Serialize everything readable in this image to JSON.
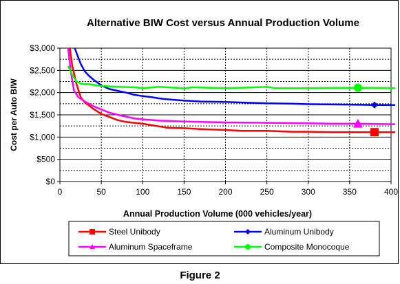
{
  "figure_caption": "Figure 2",
  "chart_data": {
    "type": "line",
    "title": "Alternative BIW Cost versus Annual Production Volume",
    "xlabel": "Annual Production Volume (000 vehicles/year)",
    "ylabel": "Cost per Auto BIW",
    "xlim": [
      0,
      400
    ],
    "ylim": [
      0,
      3000
    ],
    "x_ticks": [
      0,
      50,
      100,
      150,
      200,
      250,
      300,
      350,
      400
    ],
    "y_ticks": [
      0,
      500,
      1000,
      1500,
      2000,
      2500,
      3000
    ],
    "y_tick_labels": [
      "$0",
      "$500",
      "$1,000",
      "$1,500",
      "$2,000",
      "$2,500",
      "$3,000"
    ],
    "grid": true,
    "legend_position": "bottom",
    "series": [
      {
        "name": "Steel Unibody",
        "color": "#ff0000",
        "marker": "square",
        "marker_x": 380,
        "points": [
          [
            12,
            3000
          ],
          [
            15,
            2600
          ],
          [
            20,
            2200
          ],
          [
            25,
            1900
          ],
          [
            30,
            1780
          ],
          [
            40,
            1640
          ],
          [
            50,
            1520
          ],
          [
            60,
            1450
          ],
          [
            70,
            1380
          ],
          [
            80,
            1340
          ],
          [
            90,
            1320
          ],
          [
            100,
            1300
          ],
          [
            110,
            1270
          ],
          [
            120,
            1240
          ],
          [
            130,
            1210
          ],
          [
            150,
            1200
          ],
          [
            170,
            1180
          ],
          [
            200,
            1160
          ],
          [
            220,
            1140
          ],
          [
            250,
            1140
          ],
          [
            280,
            1120
          ],
          [
            300,
            1120
          ],
          [
            330,
            1110
          ],
          [
            360,
            1110
          ],
          [
            380,
            1110
          ],
          [
            405,
            1110
          ]
        ]
      },
      {
        "name": "Aluminum Unibody",
        "color": "#0000ff",
        "marker": "diamond",
        "marker_x": 380,
        "points": [
          [
            18,
            3000
          ],
          [
            20,
            2900
          ],
          [
            25,
            2650
          ],
          [
            30,
            2480
          ],
          [
            35,
            2380
          ],
          [
            40,
            2300
          ],
          [
            50,
            2160
          ],
          [
            60,
            2080
          ],
          [
            70,
            2040
          ],
          [
            80,
            2000
          ],
          [
            90,
            1950
          ],
          [
            100,
            1920
          ],
          [
            110,
            1900
          ],
          [
            120,
            1870
          ],
          [
            130,
            1850
          ],
          [
            150,
            1820
          ],
          [
            170,
            1800
          ],
          [
            200,
            1790
          ],
          [
            230,
            1770
          ],
          [
            250,
            1760
          ],
          [
            280,
            1750
          ],
          [
            300,
            1740
          ],
          [
            350,
            1730
          ],
          [
            380,
            1720
          ],
          [
            405,
            1720
          ]
        ]
      },
      {
        "name": "Aluminum Spaceframe",
        "color": "#ff00ff",
        "marker": "triangle",
        "marker_x": 360,
        "points": [
          [
            10,
            3000
          ],
          [
            13,
            2500
          ],
          [
            17,
            2050
          ],
          [
            22,
            1900
          ],
          [
            30,
            1800
          ],
          [
            40,
            1700
          ],
          [
            50,
            1620
          ],
          [
            60,
            1550
          ],
          [
            70,
            1500
          ],
          [
            80,
            1460
          ],
          [
            90,
            1420
          ],
          [
            100,
            1400
          ],
          [
            120,
            1370
          ],
          [
            150,
            1350
          ],
          [
            200,
            1330
          ],
          [
            250,
            1320
          ],
          [
            300,
            1310
          ],
          [
            330,
            1300
          ],
          [
            360,
            1300
          ],
          [
            405,
            1290
          ]
        ]
      },
      {
        "name": "Composite Monocoque",
        "color": "#00ff00",
        "marker": "circle",
        "marker_x": 360,
        "points": [
          [
            10,
            2600
          ],
          [
            15,
            2400
          ],
          [
            20,
            2250
          ],
          [
            25,
            2200
          ],
          [
            35,
            2190
          ],
          [
            50,
            2150
          ],
          [
            70,
            2130
          ],
          [
            90,
            2120
          ],
          [
            100,
            2100
          ],
          [
            120,
            2130
          ],
          [
            140,
            2110
          ],
          [
            150,
            2090
          ],
          [
            160,
            2120
          ],
          [
            180,
            2110
          ],
          [
            200,
            2100
          ],
          [
            220,
            2110
          ],
          [
            250,
            2130
          ],
          [
            260,
            2100
          ],
          [
            300,
            2100
          ],
          [
            360,
            2110
          ],
          [
            405,
            2100
          ]
        ]
      }
    ]
  }
}
